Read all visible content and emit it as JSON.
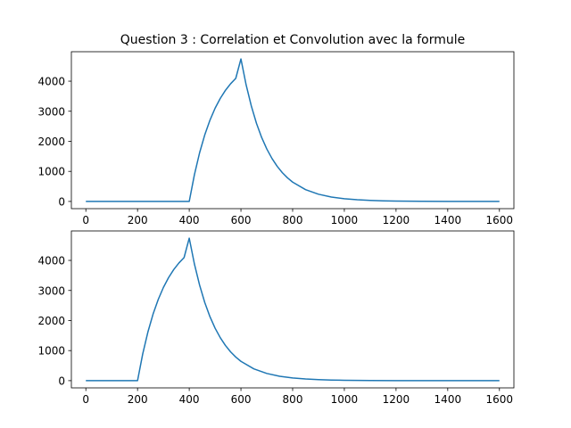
{
  "chart_data": [
    {
      "type": "line",
      "title": "Question 3 : Correlation et Convolution avec la formule",
      "xlabel": "",
      "ylabel": "",
      "xlim": [
        -56,
        1656
      ],
      "ylim": [
        -240,
        4980
      ],
      "xticks": [
        0,
        200,
        400,
        600,
        800,
        1000,
        1200,
        1400,
        1600
      ],
      "xtick_labels": [
        "0",
        "200",
        "400",
        "600",
        "800",
        "1000",
        "1200",
        "1400",
        "1600"
      ],
      "yticks": [
        0,
        1000,
        2000,
        3000,
        4000
      ],
      "ytick_labels": [
        "0",
        "1000",
        "2000",
        "3000",
        "4000"
      ],
      "grid": false,
      "color": "#1f77b4",
      "series": [
        {
          "x": [
            0,
            400,
            420,
            440,
            460,
            480,
            500,
            520,
            540,
            560,
            580,
            600,
            620,
            640,
            660,
            680,
            700,
            720,
            740,
            760,
            780,
            800,
            850,
            900,
            950,
            1000,
            1050,
            1100,
            1150,
            1200,
            1300,
            1400,
            1500,
            1600
          ],
          "y": [
            0,
            0,
            889,
            1617,
            2213,
            2700,
            3100,
            3427,
            3695,
            3914,
            4094,
            4740,
            3880,
            3180,
            2600,
            2130,
            1745,
            1430,
            1170,
            958,
            785,
            642,
            392,
            240,
            146,
            89,
            55,
            33,
            20,
            12,
            5,
            2,
            1,
            0
          ]
        }
      ]
    },
    {
      "type": "line",
      "title": "",
      "xlabel": "",
      "ylabel": "",
      "xlim": [
        -56,
        1656
      ],
      "ylim": [
        -240,
        4980
      ],
      "xticks": [
        0,
        200,
        400,
        600,
        800,
        1000,
        1200,
        1400,
        1600
      ],
      "xtick_labels": [
        "0",
        "200",
        "400",
        "600",
        "800",
        "1000",
        "1200",
        "1400",
        "1600"
      ],
      "yticks": [
        0,
        1000,
        2000,
        3000,
        4000
      ],
      "ytick_labels": [
        "0",
        "1000",
        "2000",
        "3000",
        "4000"
      ],
      "grid": false,
      "color": "#1f77b4",
      "series": [
        {
          "x": [
            0,
            200,
            220,
            240,
            260,
            280,
            300,
            320,
            340,
            360,
            380,
            400,
            420,
            440,
            460,
            480,
            500,
            520,
            540,
            560,
            580,
            600,
            650,
            700,
            750,
            800,
            850,
            900,
            950,
            1000,
            1100,
            1200,
            1300,
            1400,
            1500,
            1600
          ],
          "y": [
            0,
            0,
            889,
            1617,
            2213,
            2700,
            3100,
            3427,
            3695,
            3914,
            4094,
            4740,
            3880,
            3180,
            2600,
            2130,
            1745,
            1430,
            1170,
            958,
            785,
            642,
            392,
            240,
            146,
            89,
            55,
            33,
            20,
            12,
            5,
            2,
            1,
            0,
            0,
            0
          ]
        }
      ]
    }
  ]
}
